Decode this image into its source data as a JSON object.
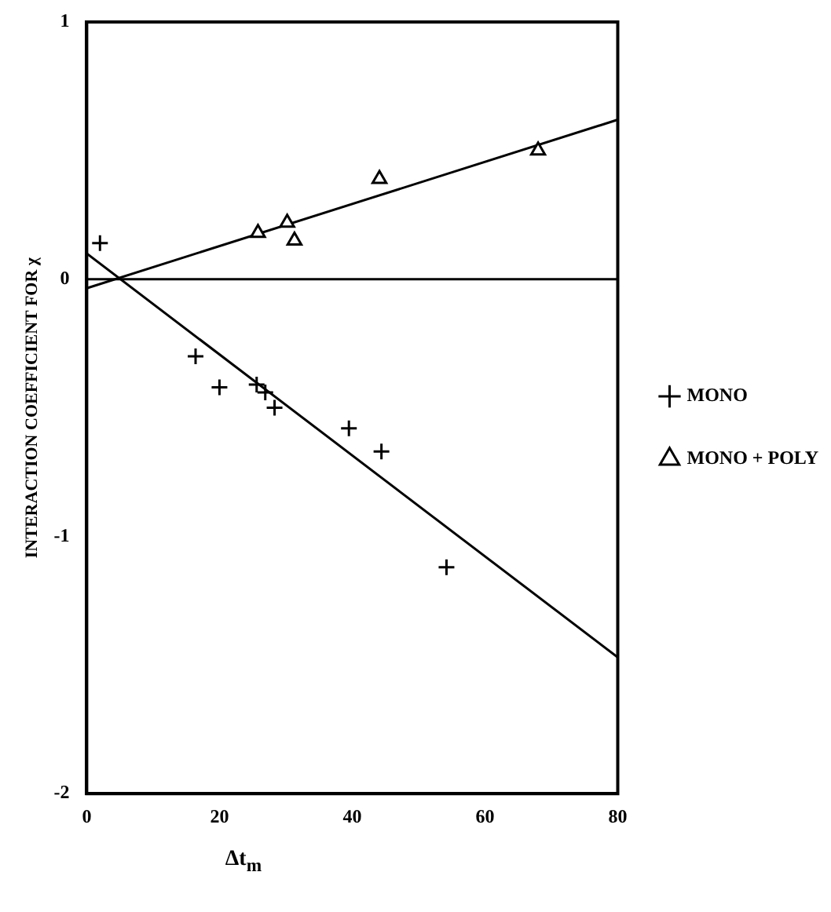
{
  "chart_data": {
    "type": "scatter",
    "xlabel": "Δt$_{m}$",
    "ylabel": "INTERACTION COEFFICIENT FOR χ",
    "xlim": [
      0,
      80
    ],
    "xticks": [
      0,
      20,
      40,
      60,
      80
    ],
    "ylim": [
      -2,
      1
    ],
    "yticks": [
      1,
      0,
      -1,
      -2
    ],
    "grid": false,
    "legend": "right",
    "ref_lines": [
      {
        "axis": "y",
        "value": 0,
        "color": "#000000"
      }
    ],
    "series": [
      {
        "name": "MONO",
        "marker": "cross",
        "color": "#000000",
        "x": [
          2.0,
          16.4,
          20,
          25.6,
          26.9,
          28.3,
          39.5,
          44.4,
          54.2
        ],
        "values": [
          0.14,
          -0.3,
          -0.42,
          -0.41,
          -0.44,
          -0.5,
          -0.58,
          -0.67,
          -1.12
        ]
      },
      {
        "name": "MONO + POLY",
        "marker": "triangle",
        "color": "#000000",
        "x": [
          25.8,
          30.2,
          31.3,
          44.1,
          68
        ],
        "values": [
          0.18,
          0.22,
          0.15,
          0.39,
          0.5
        ]
      },
      {
        "type": "line",
        "marker": "none",
        "color": "#000000",
        "x": [
          0,
          80
        ],
        "values": [
          0.1,
          -1.47
        ]
      },
      {
        "type": "line",
        "marker": "none",
        "color": "#000000",
        "x": [
          0,
          80
        ],
        "values": [
          -0.035,
          0.62
        ]
      }
    ]
  }
}
